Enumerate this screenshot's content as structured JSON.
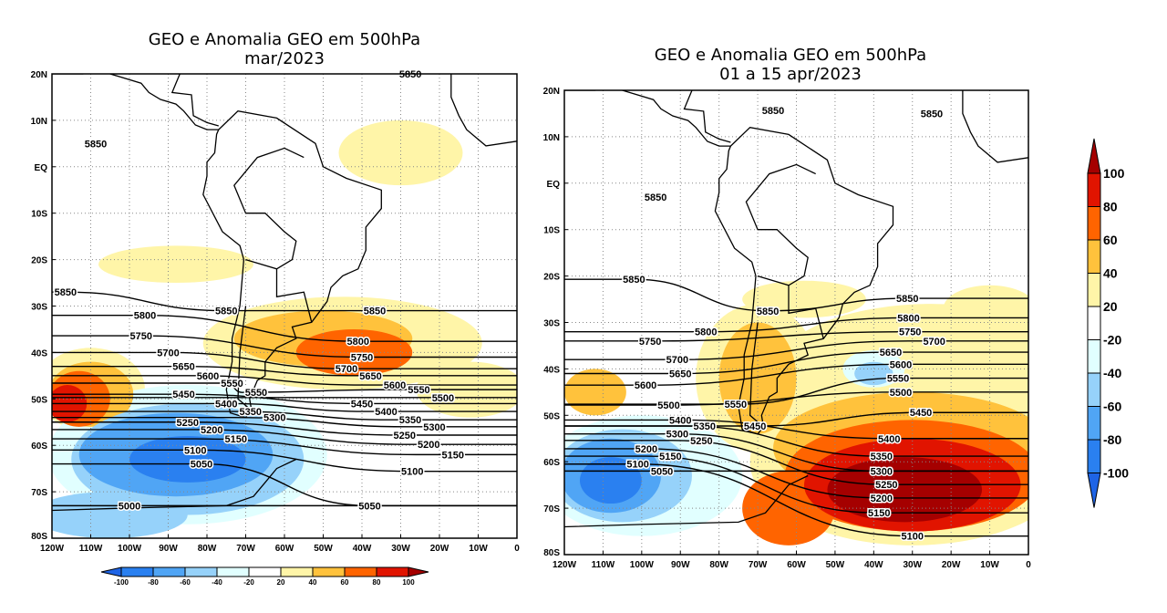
{
  "colorbar": {
    "levels": [
      -100,
      -80,
      -60,
      -40,
      -20,
      20,
      40,
      60,
      80,
      100
    ],
    "colors": [
      "#1e64e6",
      "#2a80f0",
      "#50a5f5",
      "#96d2fa",
      "#e1ffff",
      "#ffffff",
      "#fff5a8",
      "#ffc23c",
      "#ff6400",
      "#e11400",
      "#a50000"
    ]
  },
  "axes": {
    "lon_ticks": [
      "120W",
      "110W",
      "100W",
      "90W",
      "80W",
      "70W",
      "60W",
      "50W",
      "40W",
      "30W",
      "20W",
      "10W",
      "0"
    ],
    "lat_ticks": [
      "20N",
      "10N",
      "EQ",
      "10S",
      "20S",
      "30S",
      "40S",
      "50S",
      "60S",
      "70S",
      "80S"
    ]
  },
  "panels": [
    {
      "title_line1": "GEO e Anomalia GEO em 500hPa",
      "title_line2": "mar/2023",
      "anomaly_regions": [
        {
          "lon": -30,
          "lat": 3,
          "rlon": 16,
          "rlat": 7,
          "value": 20
        },
        {
          "lon": -88,
          "lat": -21,
          "rlon": 20,
          "rlat": 4,
          "value": 20
        },
        {
          "lon": -45,
          "lat": -38,
          "rlon": 36,
          "rlat": 10,
          "value": 20
        },
        {
          "lon": -12,
          "lat": -48,
          "rlon": 14,
          "rlat": 6,
          "value": 20
        },
        {
          "lon": -110,
          "lat": -48,
          "rlon": 14,
          "rlat": 9,
          "value": 20
        },
        {
          "lon": -50,
          "lat": -37,
          "rlon": 23,
          "rlat": 6,
          "value": 40
        },
        {
          "lon": -110,
          "lat": -49,
          "rlon": 11,
          "rlat": 7,
          "value": 40
        },
        {
          "lon": -42,
          "lat": -40,
          "rlon": 15,
          "rlat": 5,
          "value": 60
        },
        {
          "lon": -113,
          "lat": -50,
          "rlon": 8,
          "rlat": 6,
          "value": 60
        },
        {
          "lon": -116,
          "lat": -51,
          "rlon": 5,
          "rlat": 4,
          "value": 80
        },
        {
          "lon": -85,
          "lat": -62,
          "rlon": 36,
          "rlat": 15,
          "value": -20
        },
        {
          "lon": -105,
          "lat": -75,
          "rlon": 20,
          "rlat": 5,
          "value": -40
        },
        {
          "lon": -85,
          "lat": -63,
          "rlon": 30,
          "rlat": 12,
          "value": -40
        },
        {
          "lon": -88,
          "lat": -62,
          "rlon": 25,
          "rlat": 9,
          "value": -60
        },
        {
          "lon": -85,
          "lat": -63,
          "rlon": 15,
          "rlat": 5,
          "value": -80
        }
      ],
      "contour_labels": [
        {
          "value": 5850,
          "lon": -27.5,
          "lat": 20
        },
        {
          "value": 5850,
          "lon": -108.7,
          "lat": 5
        },
        {
          "value": 5850,
          "lon": -116.5,
          "lat": -27
        },
        {
          "value": 5850,
          "lon": -75,
          "lat": -31
        },
        {
          "value": 5850,
          "lon": -36.7,
          "lat": -31
        },
        {
          "value": 5800,
          "lon": -96,
          "lat": -32
        },
        {
          "value": 5800,
          "lon": -41,
          "lat": -37.6
        },
        {
          "value": 5750,
          "lon": -97,
          "lat": -36.4
        },
        {
          "value": 5750,
          "lon": -40,
          "lat": -41
        },
        {
          "value": 5700,
          "lon": -90,
          "lat": -40
        },
        {
          "value": 5700,
          "lon": -44,
          "lat": -43.5
        },
        {
          "value": 5650,
          "lon": -86,
          "lat": -43
        },
        {
          "value": 5650,
          "lon": -42,
          "lat": -45
        },
        {
          "value": 5600,
          "lon": -83,
          "lat": -45
        },
        {
          "value": 5600,
          "lon": -40,
          "lat": -47
        },
        {
          "value": 5550,
          "lon": -75,
          "lat": -46.6
        },
        {
          "value": 5550,
          "lon": -71,
          "lat": -48.6
        },
        {
          "value": 5550,
          "lon": -32,
          "lat": -48
        },
        {
          "value": 5500,
          "lon": -28,
          "lat": -49.7
        },
        {
          "value": 5450,
          "lon": -86,
          "lat": -49
        },
        {
          "value": 5450,
          "lon": -40,
          "lat": -51
        },
        {
          "value": 5400,
          "lon": -75,
          "lat": -51
        },
        {
          "value": 5400,
          "lon": -38.6,
          "lat": -52.7
        },
        {
          "value": 5350,
          "lon": -73.4,
          "lat": -52.7
        },
        {
          "value": 5350,
          "lon": -32,
          "lat": -54.5
        },
        {
          "value": 5300,
          "lon": -73,
          "lat": -54
        },
        {
          "value": 5300,
          "lon": -28,
          "lat": -56
        },
        {
          "value": 5250,
          "lon": -85,
          "lat": -55
        },
        {
          "value": 5250,
          "lon": -29,
          "lat": -57.8
        },
        {
          "value": 5200,
          "lon": -83,
          "lat": -56.6
        },
        {
          "value": 5200,
          "lon": -27,
          "lat": -59.8
        },
        {
          "value": 5150,
          "lon": -83,
          "lat": -58.6
        },
        {
          "value": 5150,
          "lon": -26,
          "lat": -62
        },
        {
          "value": 5100,
          "lon": -83,
          "lat": -61
        },
        {
          "value": 5100,
          "lon": -27,
          "lat": -65.6
        },
        {
          "value": 5050,
          "lon": -81.4,
          "lat": -64
        },
        {
          "value": 5050,
          "lon": -38,
          "lat": -73
        },
        {
          "value": 5000,
          "lon": -100,
          "lat": -73
        }
      ]
    },
    {
      "title_line1": "GEO e Anomalia GEO em 500hPa",
      "title_line2": "01 a 15 apr/2023",
      "anomaly_regions": [
        {
          "lon": -25,
          "lat": -40,
          "rlon": 40,
          "rlat": 14,
          "value": 20
        },
        {
          "lon": -70,
          "lat": -42,
          "rlon": 16,
          "rlat": 16,
          "value": 20
        },
        {
          "lon": -58,
          "lat": -25,
          "rlon": 16,
          "rlat": 4,
          "value": 20
        },
        {
          "lon": -10,
          "lat": -27,
          "rlon": 12,
          "rlat": 5,
          "value": 20
        },
        {
          "lon": -30,
          "lat": -60,
          "rlon": 42,
          "rlat": 18,
          "value": 20
        },
        {
          "lon": -70,
          "lat": -42,
          "rlon": 10,
          "rlat": 12,
          "value": 40
        },
        {
          "lon": -30,
          "lat": -57,
          "rlon": 36,
          "rlat": 12,
          "value": 40
        },
        {
          "lon": -112,
          "lat": -45,
          "rlon": 8,
          "rlat": 5,
          "value": 40
        },
        {
          "lon": -30,
          "lat": -63,
          "rlon": 33,
          "rlat": 12,
          "value": 60
        },
        {
          "lon": -62,
          "lat": -70,
          "rlon": 12,
          "rlat": 8,
          "value": 60
        },
        {
          "lon": -30,
          "lat": -65,
          "rlon": 28,
          "rlat": 10,
          "value": 80
        },
        {
          "lon": -32,
          "lat": -66,
          "rlon": 20,
          "rlat": 7,
          "value": 100
        },
        {
          "lon": -40,
          "lat": -40,
          "rlon": 8,
          "rlat": 4,
          "value": -20
        },
        {
          "lon": -40,
          "lat": -41,
          "rlon": 5,
          "rlat": 2.5,
          "value": -40
        },
        {
          "lon": -100,
          "lat": -63,
          "rlon": 26,
          "rlat": 13,
          "value": -20
        },
        {
          "lon": -105,
          "lat": -63,
          "rlon": 18,
          "rlat": 10,
          "value": -40
        },
        {
          "lon": -108,
          "lat": -63,
          "rlon": 13,
          "rlat": 8,
          "value": -60
        },
        {
          "lon": -108,
          "lat": -64,
          "rlon": 8,
          "rlat": 5,
          "value": -80
        }
      ],
      "contour_labels": [
        {
          "value": 5850,
          "lon": -66,
          "lat": 15.7
        },
        {
          "value": 5850,
          "lon": -25,
          "lat": 15
        },
        {
          "value": 5850,
          "lon": -96.4,
          "lat": -3
        },
        {
          "value": 5850,
          "lon": -102,
          "lat": -20.7
        },
        {
          "value": 5850,
          "lon": -67.4,
          "lat": -27.5
        },
        {
          "value": 5850,
          "lon": -31.3,
          "lat": -24.8
        },
        {
          "value": 5800,
          "lon": -83.4,
          "lat": -32
        },
        {
          "value": 5800,
          "lon": -31,
          "lat": -29
        },
        {
          "value": 5750,
          "lon": -97.8,
          "lat": -34
        },
        {
          "value": 5750,
          "lon": -30.6,
          "lat": -32
        },
        {
          "value": 5700,
          "lon": -90.8,
          "lat": -38
        },
        {
          "value": 5700,
          "lon": -31,
          "lat": -34
        },
        {
          "value": 5650,
          "lon": -90,
          "lat": -41
        },
        {
          "value": 5650,
          "lon": -35.6,
          "lat": -36.4
        },
        {
          "value": 5600,
          "lon": -99,
          "lat": -43.5
        },
        {
          "value": 5600,
          "lon": -33,
          "lat": -39
        },
        {
          "value": 5550,
          "lon": -75.7,
          "lat": -47.6
        },
        {
          "value": 5550,
          "lon": -33.7,
          "lat": -42
        },
        {
          "value": 5500,
          "lon": -93,
          "lat": -47.8
        },
        {
          "value": 5500,
          "lon": -33,
          "lat": -45
        },
        {
          "value": 5450,
          "lon": -70.7,
          "lat": -52.3
        },
        {
          "value": 5450,
          "lon": -27.8,
          "lat": -49.4
        },
        {
          "value": 5400,
          "lon": -90,
          "lat": -51
        },
        {
          "value": 5400,
          "lon": -36,
          "lat": -55
        },
        {
          "value": 5350,
          "lon": -89,
          "lat": -52.3
        },
        {
          "value": 5350,
          "lon": -38,
          "lat": -58.8
        },
        {
          "value": 5300,
          "lon": -90.8,
          "lat": -54
        },
        {
          "value": 5300,
          "lon": -38,
          "lat": -62
        },
        {
          "value": 5250,
          "lon": -92,
          "lat": -55.4
        },
        {
          "value": 5250,
          "lon": -36.7,
          "lat": -64.9
        },
        {
          "value": 5200,
          "lon": -98.8,
          "lat": -57.2
        },
        {
          "value": 5200,
          "lon": -38,
          "lat": -67.8
        },
        {
          "value": 5150,
          "lon": -99,
          "lat": -58.8
        },
        {
          "value": 5150,
          "lon": -38.6,
          "lat": -71
        },
        {
          "value": 5100,
          "lon": -101,
          "lat": -60.5
        },
        {
          "value": 5100,
          "lon": -30,
          "lat": -76
        },
        {
          "value": 5050,
          "lon": -103.5,
          "lat": -62
        }
      ]
    }
  ]
}
